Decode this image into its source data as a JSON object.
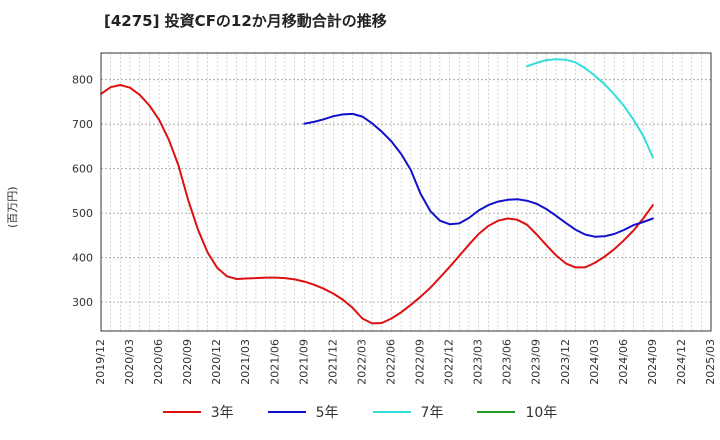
{
  "title": "[4275]  投資CFの12か月移動合計の推移",
  "ylabel": "(百万円)",
  "chart_data": {
    "type": "line",
    "title": "[4275]  投資CFの12か月移動合計の推移",
    "xlabel": "",
    "ylabel": "(百万円)",
    "ylim": [
      235,
      860
    ],
    "yticks": [
      300,
      400,
      500,
      600,
      700,
      800
    ],
    "x_start": "2019-12",
    "x_end": "2025-03",
    "xtick_labels": [
      "2019/12",
      "2020/03",
      "2020/06",
      "2020/09",
      "2020/12",
      "2021/03",
      "2021/06",
      "2021/09",
      "2021/12",
      "2022/03",
      "2022/06",
      "2022/09",
      "2022/12",
      "2023/03",
      "2023/06",
      "2023/09",
      "2023/12",
      "2024/03",
      "2024/06",
      "2024/09",
      "2024/12",
      "2025/03"
    ],
    "grid": true,
    "legend_position": "bottom",
    "series": [
      {
        "name": "3年",
        "color": "#dd1111",
        "x": [
          "2019-12",
          "2020-01",
          "2020-02",
          "2020-03",
          "2020-04",
          "2020-05",
          "2020-06",
          "2020-07",
          "2020-08",
          "2020-09",
          "2020-10",
          "2020-11",
          "2020-12",
          "2021-01",
          "2021-02",
          "2021-03",
          "2021-04",
          "2021-05",
          "2021-06",
          "2021-07",
          "2021-08",
          "2021-09",
          "2021-10",
          "2021-11",
          "2021-12",
          "2022-01",
          "2022-02",
          "2022-03",
          "2022-04",
          "2022-05",
          "2022-06",
          "2022-07",
          "2022-08",
          "2022-09",
          "2022-10",
          "2022-11",
          "2022-12",
          "2023-01",
          "2023-02",
          "2023-03",
          "2023-04",
          "2023-05",
          "2023-06",
          "2023-07",
          "2023-08",
          "2023-09",
          "2023-10",
          "2023-11",
          "2023-12",
          "2024-01",
          "2024-02",
          "2024-03",
          "2024-04",
          "2024-05",
          "2024-06",
          "2024-07",
          "2024-08",
          "2024-09"
        ],
        "values": [
          768,
          783,
          788,
          782,
          766,
          742,
          710,
          665,
          607,
          530,
          464,
          412,
          377,
          358,
          352,
          353,
          354,
          355,
          355,
          354,
          351,
          346,
          339,
          330,
          319,
          305,
          287,
          263,
          252,
          253,
          263,
          277,
          294,
          312,
          332,
          355,
          379,
          404,
          429,
          453,
          471,
          483,
          488,
          485,
          474,
          452,
          428,
          405,
          387,
          378,
          378,
          388,
          402,
          419,
          439,
          461,
          488,
          518
        ]
      },
      {
        "name": "5年",
        "color": "#1111cc",
        "x": [
          "2021-09",
          "2021-10",
          "2021-11",
          "2021-12",
          "2022-01",
          "2022-02",
          "2022-03",
          "2022-04",
          "2022-05",
          "2022-06",
          "2022-07",
          "2022-08",
          "2022-09",
          "2022-10",
          "2022-11",
          "2022-12",
          "2023-01",
          "2023-02",
          "2023-03",
          "2023-04",
          "2023-05",
          "2023-06",
          "2023-07",
          "2023-08",
          "2023-09",
          "2023-10",
          "2023-11",
          "2023-12",
          "2024-01",
          "2024-02",
          "2024-03",
          "2024-04",
          "2024-05",
          "2024-06",
          "2024-07",
          "2024-08",
          "2024-09"
        ],
        "values": [
          701,
          705,
          711,
          718,
          722,
          723,
          717,
          702,
          683,
          661,
          633,
          597,
          544,
          505,
          483,
          475,
          477,
          489,
          506,
          518,
          526,
          530,
          531,
          528,
          521,
          509,
          494,
          478,
          463,
          452,
          447,
          448,
          453,
          462,
          473,
          480,
          488
        ]
      },
      {
        "name": "7年",
        "color": "#33dddd",
        "x": [
          "2023-08",
          "2023-09",
          "2023-10",
          "2023-11",
          "2023-12",
          "2024-01",
          "2024-02",
          "2024-03",
          "2024-04",
          "2024-05",
          "2024-06",
          "2024-07",
          "2024-08",
          "2024-09"
        ],
        "values": [
          830,
          838,
          844,
          846,
          845,
          839,
          826,
          809,
          790,
          767,
          741,
          710,
          674,
          625
        ]
      },
      {
        "name": "10年",
        "color": "#229922",
        "x": [],
        "values": []
      }
    ]
  }
}
